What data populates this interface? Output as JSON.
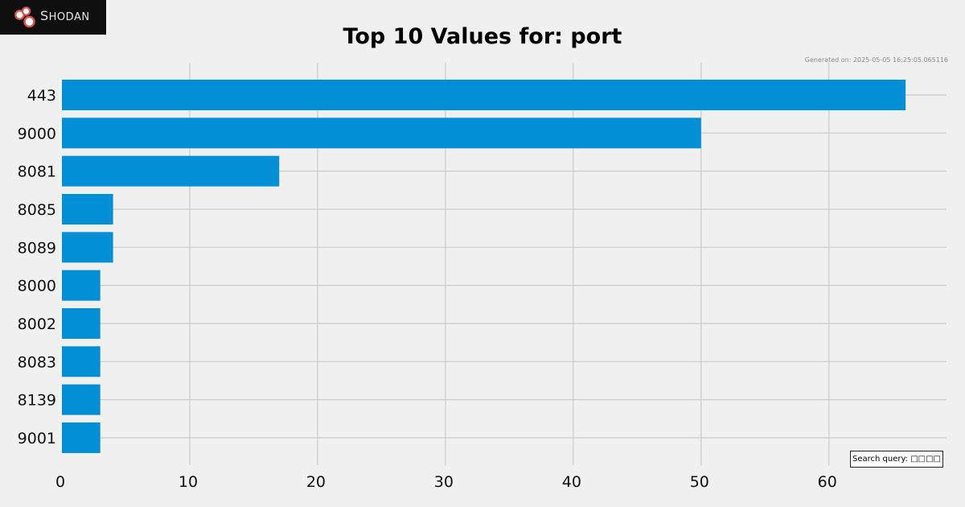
{
  "brand": {
    "initial": "S",
    "rest": "HODAN",
    "logo_icon": "shodan-logo-icon"
  },
  "footer": {
    "generated_on": "Generated on: 2025-05-05 16:25:05.065116",
    "search_query": "Search query: □□□□"
  },
  "colors": {
    "background": "#f0f0f0",
    "bar": "#038fd6",
    "grid": "#cbcbcb",
    "logo_bg": "#0f0f0f",
    "logo_ring": "#d9534f"
  },
  "chart_data": {
    "type": "bar",
    "orientation": "horizontal",
    "title": "Top 10 Values for: port",
    "categories": [
      "443",
      "9000",
      "8081",
      "8085",
      "8089",
      "8000",
      "8002",
      "8083",
      "8139",
      "9001"
    ],
    "values": [
      66,
      50,
      17,
      4,
      4,
      3,
      3,
      3,
      3,
      3
    ],
    "xlabel": "",
    "ylabel": "",
    "xlim": [
      0,
      69.2
    ],
    "xticks": [
      0,
      10,
      20,
      30,
      40,
      50,
      60
    ],
    "grid": true
  }
}
